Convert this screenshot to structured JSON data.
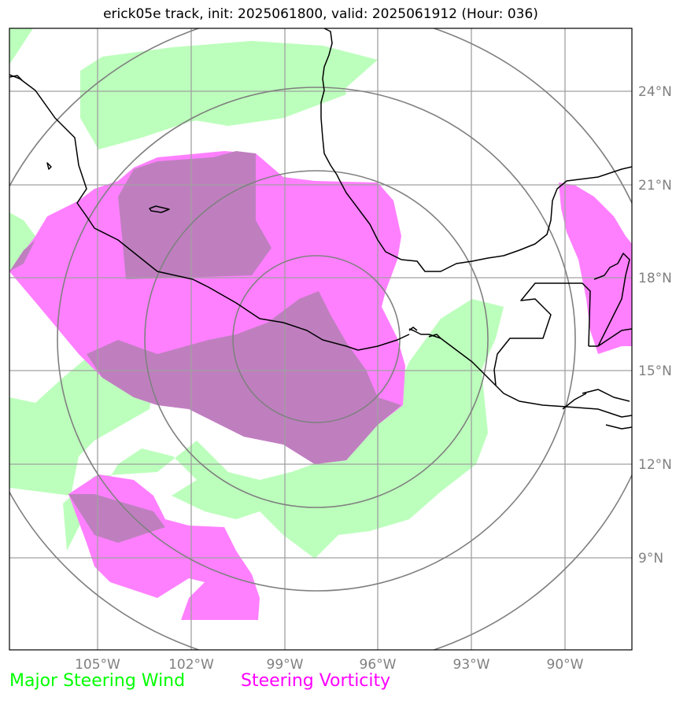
{
  "title": "erick05e track, init: 2025061800, valid: 2025061912 (Hour: 036)",
  "colors": {
    "steering_wind": "#00ff00",
    "steering_vorticity": "#ff00ff",
    "overlap": "#bf7fbf",
    "grid": "#a0a0a0",
    "range_rings": "#808080",
    "coastline": "#000000",
    "tick_labels": "#808080"
  },
  "map": {
    "projection": "plate-carree",
    "lon_range": [
      -107.8,
      -87.8
    ],
    "lat_range": [
      6.8,
      26.8
    ],
    "lon_ticks": [
      "105°W",
      "102°W",
      "99°W",
      "96°W",
      "93°W",
      "90°W"
    ],
    "lat_ticks": [
      "24°N",
      "21°N",
      "18°N",
      "15°N",
      "12°N",
      "9°N"
    ],
    "range_ring_center": {
      "lon": -98.0,
      "lat": 16.0
    },
    "range_ring_count": 4,
    "fields": [
      "Major Steering Wind",
      "Steering Vorticity"
    ]
  },
  "legend": {
    "wind_label": "Major Steering Wind",
    "vorticity_label": "Steering Vorticity"
  }
}
